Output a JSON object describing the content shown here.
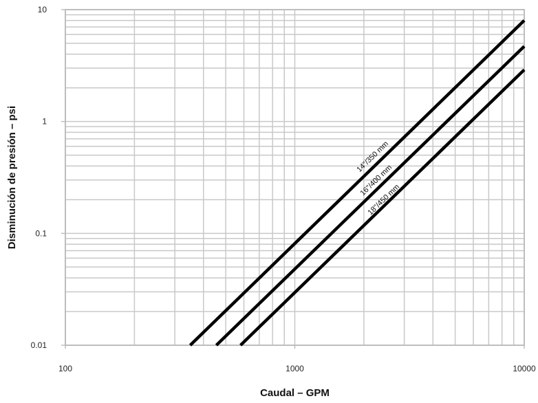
{
  "chart_data": {
    "type": "line",
    "title": "",
    "xlabel": "Caudal – GPM",
    "ylabel": "Disminución de presión – psi",
    "x_scale": "log",
    "y_scale": "log",
    "xlim": [
      100,
      10000
    ],
    "ylim": [
      0.01,
      10
    ],
    "x_ticks": [
      100,
      1000,
      10000
    ],
    "x_tick_labels": [
      "100",
      "1000",
      "10000"
    ],
    "y_ticks": [
      0.01,
      0.1,
      1,
      10
    ],
    "y_tick_labels": [
      "0.01",
      "0.1",
      "1",
      "10"
    ],
    "grid": true,
    "legend": "inline",
    "line_color": "#000000",
    "grid_color": "#c8c8c8",
    "series": [
      {
        "name": "14\"/350 mm",
        "x": [
          350,
          10000
        ],
        "y": [
          0.01,
          8.0
        ]
      },
      {
        "name": "16\"/400 mm",
        "x": [
          455,
          10000
        ],
        "y": [
          0.01,
          4.7
        ]
      },
      {
        "name": "18\"/450 mm",
        "x": [
          580,
          10000
        ],
        "y": [
          0.01,
          2.9
        ]
      }
    ]
  }
}
